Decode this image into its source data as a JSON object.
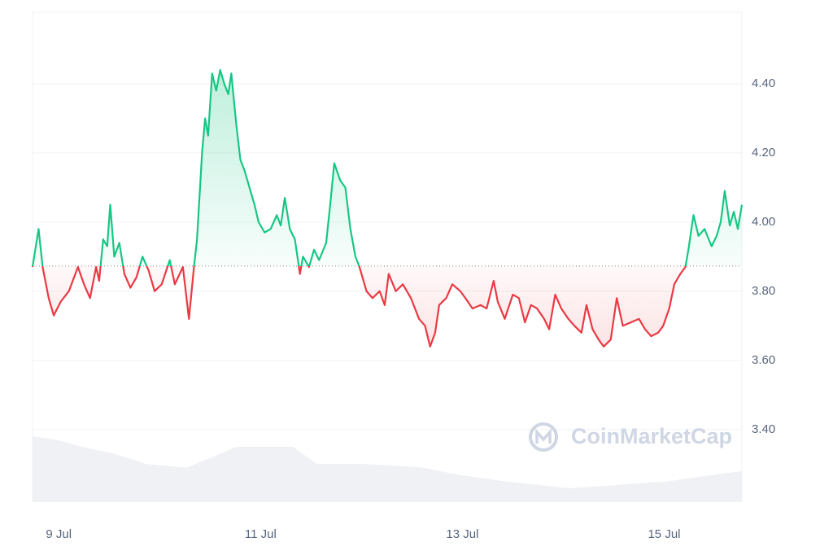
{
  "chart_data": {
    "type": "line",
    "watermark": "CoinMarketCap",
    "xlim": [
      -0.26,
      6.77
    ],
    "xticks": [
      {
        "value": 0,
        "label": "9 Jul"
      },
      {
        "value": 2,
        "label": "11 Jul"
      },
      {
        "value": 4,
        "label": "13 Jul"
      },
      {
        "value": 6,
        "label": "15 Jul"
      }
    ],
    "ylim": [
      3.19,
      4.607
    ],
    "yticks": [
      {
        "value": 3.4,
        "label": "3.40"
      },
      {
        "value": 3.6,
        "label": "3.60"
      },
      {
        "value": 3.8,
        "label": "3.80"
      },
      {
        "value": 4.0,
        "label": "4.00"
      },
      {
        "value": 4.2,
        "label": "4.20"
      },
      {
        "value": 4.4,
        "label": "4.40"
      }
    ],
    "grid": true,
    "baseline": 3.873,
    "up_color": "#16c784",
    "down_color": "#ea3943",
    "series": [
      {
        "name": "Price",
        "x": [
          -0.26,
          -0.2,
          -0.16,
          -0.1,
          -0.05,
          0.02,
          0.1,
          0.19,
          0.25,
          0.31,
          0.37,
          0.4,
          0.44,
          0.48,
          0.51,
          0.55,
          0.6,
          0.65,
          0.71,
          0.77,
          0.83,
          0.89,
          0.95,
          1.02,
          1.1,
          1.15,
          1.23,
          1.29,
          1.34,
          1.37,
          1.42,
          1.45,
          1.48,
          1.52,
          1.56,
          1.6,
          1.64,
          1.68,
          1.71,
          1.76,
          1.8,
          1.84,
          1.89,
          1.94,
          1.98,
          2.04,
          2.1,
          2.16,
          2.2,
          2.24,
          2.29,
          2.34,
          2.39,
          2.42,
          2.48,
          2.53,
          2.58,
          2.65,
          2.69,
          2.73,
          2.79,
          2.84,
          2.89,
          2.94,
          2.98,
          3.05,
          3.11,
          3.18,
          3.23,
          3.27,
          3.34,
          3.41,
          3.49,
          3.57,
          3.63,
          3.68,
          3.73,
          3.77,
          3.84,
          3.9,
          3.98,
          4.03,
          4.1,
          4.18,
          4.24,
          4.31,
          4.35,
          4.42,
          4.5,
          4.56,
          4.62,
          4.68,
          4.74,
          4.81,
          4.86,
          4.92,
          4.98,
          5.05,
          5.11,
          5.18,
          5.23,
          5.29,
          5.35,
          5.4,
          5.47,
          5.53,
          5.59,
          5.67,
          5.75,
          5.81,
          5.87,
          5.94,
          5.99,
          6.05,
          6.1,
          6.16,
          6.21,
          6.24,
          6.29,
          6.34,
          6.4,
          6.47,
          6.52,
          6.56,
          6.6,
          6.65,
          6.69,
          6.73,
          6.77
        ],
        "values": [
          3.87,
          3.98,
          3.87,
          3.78,
          3.73,
          3.77,
          3.8,
          3.87,
          3.82,
          3.78,
          3.87,
          3.83,
          3.95,
          3.93,
          4.05,
          3.9,
          3.94,
          3.85,
          3.81,
          3.84,
          3.9,
          3.86,
          3.8,
          3.82,
          3.89,
          3.82,
          3.87,
          3.72,
          3.87,
          3.95,
          4.2,
          4.3,
          4.25,
          4.43,
          4.38,
          4.44,
          4.4,
          4.37,
          4.43,
          4.28,
          4.18,
          4.15,
          4.1,
          4.05,
          4.0,
          3.97,
          3.98,
          4.02,
          3.99,
          4.07,
          3.98,
          3.95,
          3.85,
          3.9,
          3.87,
          3.92,
          3.89,
          3.94,
          4.05,
          4.17,
          4.12,
          4.1,
          3.98,
          3.9,
          3.87,
          3.8,
          3.78,
          3.8,
          3.76,
          3.85,
          3.8,
          3.82,
          3.78,
          3.72,
          3.7,
          3.64,
          3.68,
          3.76,
          3.78,
          3.82,
          3.8,
          3.78,
          3.75,
          3.76,
          3.75,
          3.83,
          3.77,
          3.72,
          3.79,
          3.78,
          3.71,
          3.76,
          3.75,
          3.72,
          3.69,
          3.79,
          3.75,
          3.72,
          3.7,
          3.68,
          3.76,
          3.69,
          3.66,
          3.64,
          3.66,
          3.78,
          3.7,
          3.71,
          3.72,
          3.69,
          3.67,
          3.68,
          3.7,
          3.75,
          3.82,
          3.85,
          3.87,
          3.92,
          4.02,
          3.96,
          3.98,
          3.93,
          3.96,
          4.0,
          4.09,
          3.99,
          4.03,
          3.98,
          4.05
        ]
      },
      {
        "name": "Volume",
        "color": "#eff1f4",
        "x": [
          -0.26,
          -0.02,
          0.23,
          0.55,
          0.87,
          1.27,
          1.52,
          1.76,
          2.32,
          2.56,
          3.05,
          3.61,
          3.94,
          4.42,
          5.06,
          5.55,
          6.03,
          6.52,
          6.77
        ],
        "values": [
          3.38,
          3.37,
          3.35,
          3.33,
          3.3,
          3.29,
          3.32,
          3.35,
          3.35,
          3.3,
          3.3,
          3.29,
          3.27,
          3.25,
          3.23,
          3.24,
          3.25,
          3.27,
          3.28
        ]
      }
    ]
  }
}
